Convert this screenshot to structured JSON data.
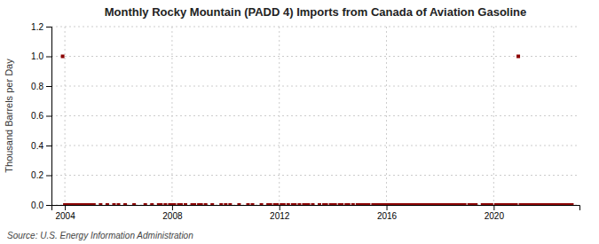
{
  "chart_data": {
    "type": "scatter",
    "title": "Monthly Rocky Mountain (PADD 4) Imports from Canada of Aviation Gasoline",
    "ylabel": "Thousand Barrels per Day",
    "annotations": [
      "Source: U.S. Energy Information Administration"
    ],
    "color": "#8b0000",
    "marker": "square",
    "grid": true,
    "xlim": [
      2003.5,
      2023.2
    ],
    "ylim": [
      0.0,
      1.2
    ],
    "xticks": [
      2004,
      2008,
      2012,
      2016,
      2020
    ],
    "yticks": [
      {
        "value": 0.0,
        "label": "0.0"
      },
      0.2,
      0.4,
      0.6,
      0.8,
      {
        "value": 1.0,
        "label": "1.0"
      },
      1.2
    ],
    "x": [
      2003.917,
      2004.0,
      2004.083,
      2004.167,
      2004.25,
      2004.333,
      2004.417,
      2004.5,
      2004.583,
      2004.667,
      2004.75,
      2004.833,
      2004.917,
      2005.0,
      2005.083,
      2005.333,
      2005.583,
      2005.833,
      2006.0,
      2006.25,
      2006.583,
      2007.0,
      2007.25,
      2007.5,
      2007.583,
      2007.75,
      2007.917,
      2008.0,
      2008.083,
      2008.25,
      2008.333,
      2008.5,
      2008.75,
      2008.833,
      2009.0,
      2009.083,
      2009.25,
      2009.5,
      2009.833,
      2010.0,
      2010.167,
      2010.5,
      2010.833,
      2011.0,
      2011.333,
      2011.583,
      2011.667,
      2011.833,
      2011.917,
      2012.083,
      2012.167,
      2012.333,
      2012.5,
      2012.583,
      2012.75,
      2012.917,
      2013.0,
      2013.083,
      2013.25,
      2013.5,
      2013.667,
      2013.75,
      2013.917,
      2014.0,
      2014.083,
      2014.25,
      2014.333,
      2014.5,
      2014.583,
      2014.75,
      2014.917,
      2015.0,
      2015.083,
      2015.167,
      2015.25,
      2015.333,
      2015.5,
      2015.583,
      2015.667,
      2015.75,
      2015.833,
      2015.917,
      2016.0,
      2016.083,
      2016.167,
      2016.25,
      2016.333,
      2016.417,
      2016.5,
      2016.583,
      2016.667,
      2016.75,
      2016.833,
      2016.917,
      2017.0,
      2017.083,
      2017.167,
      2017.25,
      2017.333,
      2017.417,
      2017.5,
      2017.583,
      2017.667,
      2017.75,
      2017.833,
      2017.917,
      2018.0,
      2018.083,
      2018.167,
      2018.25,
      2018.333,
      2018.417,
      2018.5,
      2018.583,
      2018.667,
      2018.75,
      2018.833,
      2018.917,
      2019.083,
      2019.167,
      2019.25,
      2019.333,
      2019.583,
      2019.667,
      2019.75,
      2019.833,
      2019.917,
      2020.083,
      2020.167,
      2020.25,
      2020.333,
      2020.417,
      2020.5,
      2020.583,
      2020.667,
      2020.75,
      2020.833,
      2020.917,
      2021.0,
      2021.083,
      2021.167,
      2021.25,
      2021.333,
      2021.417,
      2021.5,
      2021.583,
      2021.667,
      2021.75,
      2021.833,
      2021.917,
      2022.0,
      2022.083,
      2022.167,
      2022.25,
      2022.333,
      2022.417,
      2022.5,
      2022.583,
      2022.667,
      2022.75,
      2022.833,
      2022.917
    ],
    "values": [
      1.0,
      0.0,
      0.0,
      0.0,
      0.0,
      0.0,
      0.0,
      0.0,
      0.0,
      0.0,
      0.0,
      0.0,
      0.0,
      0.0,
      0.0,
      0.0,
      0.0,
      0.0,
      0.0,
      0.0,
      0.0,
      0.0,
      0.0,
      0.0,
      0.0,
      0.0,
      0.0,
      0.0,
      0.0,
      0.0,
      0.0,
      0.0,
      0.0,
      0.0,
      0.0,
      0.0,
      0.0,
      0.0,
      0.0,
      0.0,
      0.0,
      0.0,
      0.0,
      0.0,
      0.0,
      0.0,
      0.0,
      0.0,
      0.0,
      0.0,
      0.0,
      0.0,
      0.0,
      0.0,
      0.0,
      0.0,
      0.0,
      0.0,
      0.0,
      0.0,
      0.0,
      0.0,
      0.0,
      0.0,
      0.0,
      0.0,
      0.0,
      0.0,
      0.0,
      0.0,
      0.0,
      0.0,
      0.0,
      0.0,
      0.0,
      0.0,
      0.0,
      0.0,
      0.0,
      0.0,
      0.0,
      0.0,
      0.0,
      0.0,
      0.0,
      0.0,
      0.0,
      0.0,
      0.0,
      0.0,
      0.0,
      0.0,
      0.0,
      0.0,
      0.0,
      0.0,
      0.0,
      0.0,
      0.0,
      0.0,
      0.0,
      0.0,
      0.0,
      0.0,
      0.0,
      0.0,
      0.0,
      0.0,
      0.0,
      0.0,
      0.0,
      0.0,
      0.0,
      0.0,
      0.0,
      0.0,
      0.0,
      0.0,
      0.0,
      0.0,
      0.0,
      0.0,
      0.0,
      0.0,
      0.0,
      0.0,
      0.0,
      0.0,
      0.0,
      0.0,
      0.0,
      0.0,
      0.0,
      0.0,
      0.0,
      0.0,
      0.0,
      1.0,
      0.0,
      0.0,
      0.0,
      0.0,
      0.0,
      0.0,
      0.0,
      0.0,
      0.0,
      0.0,
      0.0,
      0.0,
      0.0,
      0.0,
      0.0,
      0.0,
      0.0,
      0.0,
      0.0,
      0.0,
      0.0,
      0.0,
      0.0,
      0.0
    ]
  }
}
